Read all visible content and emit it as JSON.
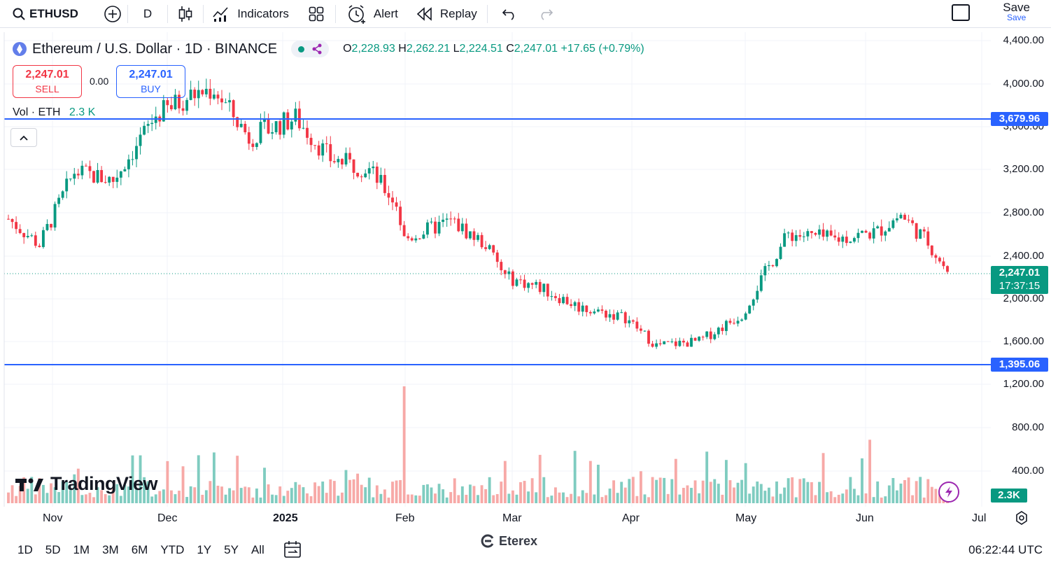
{
  "toolbar": {
    "symbol": "ETHUSD",
    "interval": "D",
    "indicators_label": "Indicators",
    "alert_label": "Alert",
    "replay_label": "Replay",
    "save_label": "Save",
    "save_sub": "Save"
  },
  "legend": {
    "title": "Ethereum / U.S. Dollar · 1D · BINANCE",
    "o_label": "O",
    "o_val": "2,228.93",
    "h_label": "H",
    "h_val": "2,262.21",
    "l_label": "L",
    "l_val": "2,224.51",
    "c_label": "C",
    "c_val": "2,247.01",
    "change": "+17.65 (+0.79%)"
  },
  "trade": {
    "sell_price": "2,247.01",
    "sell_label": "SELL",
    "spread": "0.00",
    "buy_price": "2,247.01",
    "buy_label": "BUY"
  },
  "volume_legend": {
    "label": "Vol · ETH",
    "value": "2.3 K"
  },
  "price_axis": [
    "4,400.00",
    "4,000.00",
    "3,600.00",
    "3,200.00",
    "2,800.00",
    "2,400.00",
    "2,000.00",
    "1,600.00",
    "1,200.00",
    "800.00",
    "400.00"
  ],
  "horizontal_lines": {
    "upper": "3,679.96",
    "lower": "1,395.06"
  },
  "current_price": {
    "price": "2,247.01",
    "countdown": "17:37:15"
  },
  "volume_tag": "2.3K",
  "time_axis": [
    "Nov",
    "Dec",
    "2025",
    "Feb",
    "Mar",
    "Apr",
    "May",
    "Jun",
    "Jul"
  ],
  "ranges": [
    "1D",
    "5D",
    "1M",
    "3M",
    "6M",
    "YTD",
    "1Y",
    "5Y",
    "All"
  ],
  "clock": "06:22:44 UTC",
  "logo_text": "TradingView",
  "brand_text": "Eterex",
  "colors": {
    "up": "#089981",
    "down": "#f23645",
    "line": "#2962ff"
  },
  "chart_data": {
    "type": "candlestick",
    "ylim": [
      1200,
      4400
    ],
    "x": [
      "2024-10-24",
      "2024-11-01",
      "2024-11-10",
      "2024-11-20",
      "2024-12-01",
      "2024-12-10",
      "2024-12-16",
      "2024-12-25",
      "2025-01-06",
      "2025-01-15",
      "2025-01-25",
      "2025-02-01",
      "2025-02-03",
      "2025-02-15",
      "2025-02-24",
      "2025-03-01",
      "2025-03-10",
      "2025-03-20",
      "2025-04-01",
      "2025-04-09",
      "2025-04-20",
      "2025-05-01",
      "2025-05-08",
      "2025-05-13",
      "2025-05-25",
      "2025-06-05",
      "2025-06-11",
      "2025-06-18",
      "2025-06-23"
    ],
    "close": [
      2740,
      2500,
      3180,
      3100,
      3700,
      3890,
      3950,
      3500,
      3680,
      3300,
      3200,
      2880,
      2550,
      2720,
      2500,
      2200,
      2100,
      1920,
      1820,
      1560,
      1600,
      1850,
      2300,
      2600,
      2550,
      2620,
      2780,
      2520,
      2247
    ],
    "volume_peak": "Feb"
  }
}
